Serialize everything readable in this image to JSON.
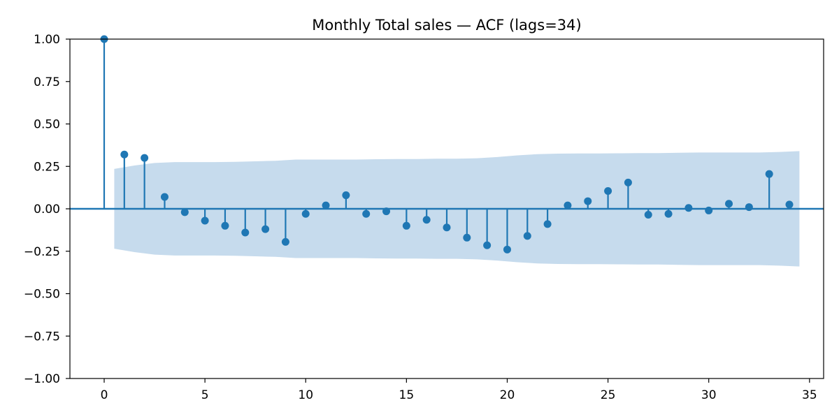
{
  "chart_data": {
    "type": "stem",
    "title": "Monthly Total sales — ACF (lags=34)",
    "xlabel": "",
    "ylabel": "",
    "xlim": [
      -1.7,
      35.7
    ],
    "ylim": [
      -1.0,
      1.0
    ],
    "xticks": [
      0,
      5,
      10,
      15,
      20,
      25,
      30,
      35
    ],
    "yticks": [
      1.0,
      0.75,
      0.5,
      0.25,
      0.0,
      -0.25,
      -0.5,
      -0.75,
      -1.0
    ],
    "xtick_labels": [
      "0",
      "5",
      "10",
      "15",
      "20",
      "25",
      "30",
      "35"
    ],
    "ytick_labels": [
      "1.00",
      "0.75",
      "0.50",
      "0.25",
      "0.00",
      "−0.25",
      "−0.50",
      "−0.75",
      "−1.00"
    ],
    "grid": false,
    "lags": [
      0,
      1,
      2,
      3,
      4,
      5,
      6,
      7,
      8,
      9,
      10,
      11,
      12,
      13,
      14,
      15,
      16,
      17,
      18,
      19,
      20,
      21,
      22,
      23,
      24,
      25,
      26,
      27,
      28,
      29,
      30,
      31,
      32,
      33,
      34
    ],
    "acf": [
      1.0,
      0.32,
      0.3,
      0.07,
      -0.02,
      -0.07,
      -0.1,
      -0.14,
      -0.12,
      -0.195,
      -0.03,
      0.02,
      0.08,
      -0.03,
      -0.015,
      -0.1,
      -0.065,
      -0.11,
      -0.17,
      -0.215,
      -0.24,
      -0.16,
      -0.09,
      0.02,
      0.045,
      0.105,
      0.155,
      -0.035,
      -0.03,
      0.005,
      -0.01,
      0.03,
      0.01,
      0.205,
      0.025
    ],
    "conf_band": {
      "x": [
        0.5,
        1.5,
        2.5,
        3.5,
        4.5,
        5.5,
        6.5,
        7.5,
        8.5,
        9.5,
        10.5,
        11.5,
        12.5,
        13.5,
        14.5,
        15.5,
        16.5,
        17.5,
        18.5,
        19.5,
        20.5,
        21.5,
        22.5,
        23.5,
        24.5,
        25.5,
        26.5,
        27.5,
        28.5,
        29.5,
        30.5,
        31.5,
        32.5,
        33.5,
        34.5
      ],
      "upper": [
        0.235,
        0.255,
        0.27,
        0.275,
        0.275,
        0.275,
        0.277,
        0.28,
        0.283,
        0.29,
        0.29,
        0.29,
        0.29,
        0.292,
        0.293,
        0.293,
        0.295,
        0.295,
        0.298,
        0.305,
        0.315,
        0.322,
        0.325,
        0.326,
        0.326,
        0.327,
        0.328,
        0.328,
        0.33,
        0.332,
        0.332,
        0.332,
        0.332,
        0.335,
        0.34
      ]
    },
    "colors": {
      "stem": "#1f77b4",
      "band": "#c6dbed",
      "zero_line": "#1f77b4",
      "axis": "#000000"
    }
  }
}
